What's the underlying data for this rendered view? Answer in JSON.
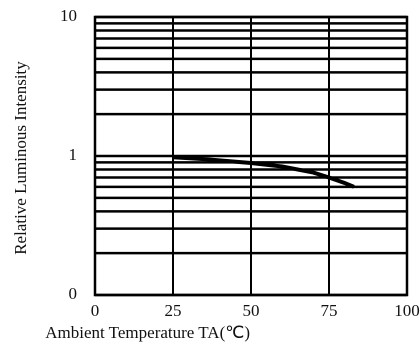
{
  "chart_data": {
    "type": "line",
    "x_label": "Ambient Temperature TA(℃)",
    "y_label": "Relative Luminous Intensity",
    "x": [
      25,
      35,
      50,
      60,
      70,
      75,
      80,
      83
    ],
    "series": [
      {
        "color": "#000000",
        "values": [
          0.98,
          0.95,
          0.89,
          0.84,
          0.76,
          0.7,
          0.64,
          0.6
        ]
      }
    ],
    "xlim": [
      0,
      100
    ],
    "xticks": [
      0,
      25,
      50,
      75,
      100
    ],
    "ylim": [
      0.1,
      10
    ],
    "yticks": [
      {
        "value": 0.1,
        "label": "0"
      },
      1,
      10
    ],
    "y_log": true,
    "grid": true
  }
}
